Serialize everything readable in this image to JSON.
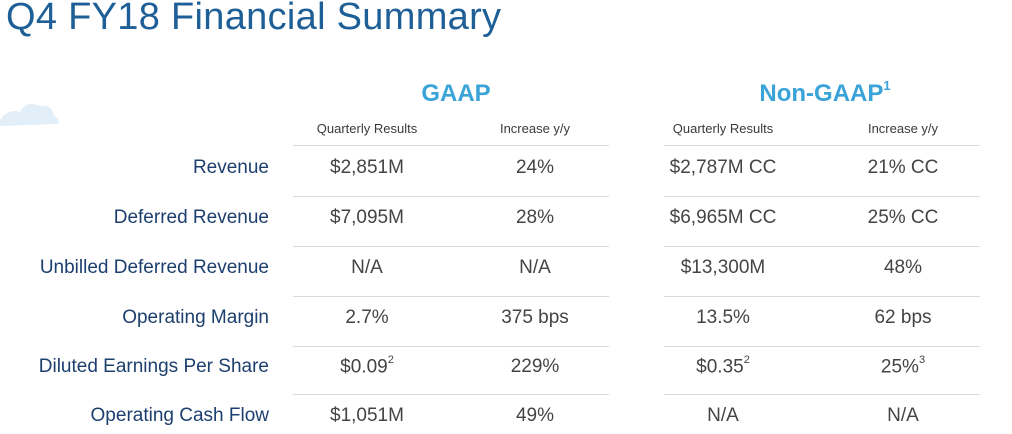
{
  "title": "Q4 FY18 Financial Summary",
  "groups": {
    "gaap": {
      "label": "GAAP",
      "col1": "Quarterly Results",
      "col2": "Increase y/y"
    },
    "nongaap": {
      "label": "Non-GAAP",
      "footnote": "1",
      "col1": "Quarterly Results",
      "col2": "Increase y/y"
    }
  },
  "rows": [
    {
      "label": "Revenue",
      "gaap_result": "$2,851M",
      "gaap_result_sup": "",
      "gaap_increase": "24%",
      "gaap_increase_sup": "",
      "nongaap_result": "$2,787M CC",
      "nongaap_result_sup": "",
      "nongaap_increase": "21% CC",
      "nongaap_increase_sup": ""
    },
    {
      "label": "Deferred Revenue",
      "gaap_result": "$7,095M",
      "gaap_result_sup": "",
      "gaap_increase": "28%",
      "gaap_increase_sup": "",
      "nongaap_result": "$6,965M CC",
      "nongaap_result_sup": "",
      "nongaap_increase": "25% CC",
      "nongaap_increase_sup": ""
    },
    {
      "label": "Unbilled Deferred Revenue",
      "gaap_result": "N/A",
      "gaap_result_sup": "",
      "gaap_increase": "N/A",
      "gaap_increase_sup": "",
      "nongaap_result": "$13,300M",
      "nongaap_result_sup": "",
      "nongaap_increase": "48%",
      "nongaap_increase_sup": ""
    },
    {
      "label": "Operating Margin",
      "gaap_result": "2.7%",
      "gaap_result_sup": "",
      "gaap_increase": "375 bps",
      "gaap_increase_sup": "",
      "nongaap_result": "13.5%",
      "nongaap_result_sup": "",
      "nongaap_increase": "62 bps",
      "nongaap_increase_sup": ""
    },
    {
      "label": "Diluted Earnings Per Share",
      "gaap_result": "$0.09",
      "gaap_result_sup": "2",
      "gaap_increase": "229%",
      "gaap_increase_sup": "",
      "nongaap_result": "$0.35",
      "nongaap_result_sup": "2",
      "nongaap_increase": "25%",
      "nongaap_increase_sup": "3"
    },
    {
      "label": "Operating Cash Flow",
      "gaap_result": "$1,051M",
      "gaap_result_sup": "",
      "gaap_increase": "49%",
      "gaap_increase_sup": "",
      "nongaap_result": "N/A",
      "nongaap_result_sup": "",
      "nongaap_increase": "N/A",
      "nongaap_increase_sup": ""
    }
  ],
  "colors": {
    "title": "#1d5f96",
    "group_header": "#3aa3d8",
    "row_label": "#1c3f6e",
    "rule": "#d4dbe3"
  }
}
